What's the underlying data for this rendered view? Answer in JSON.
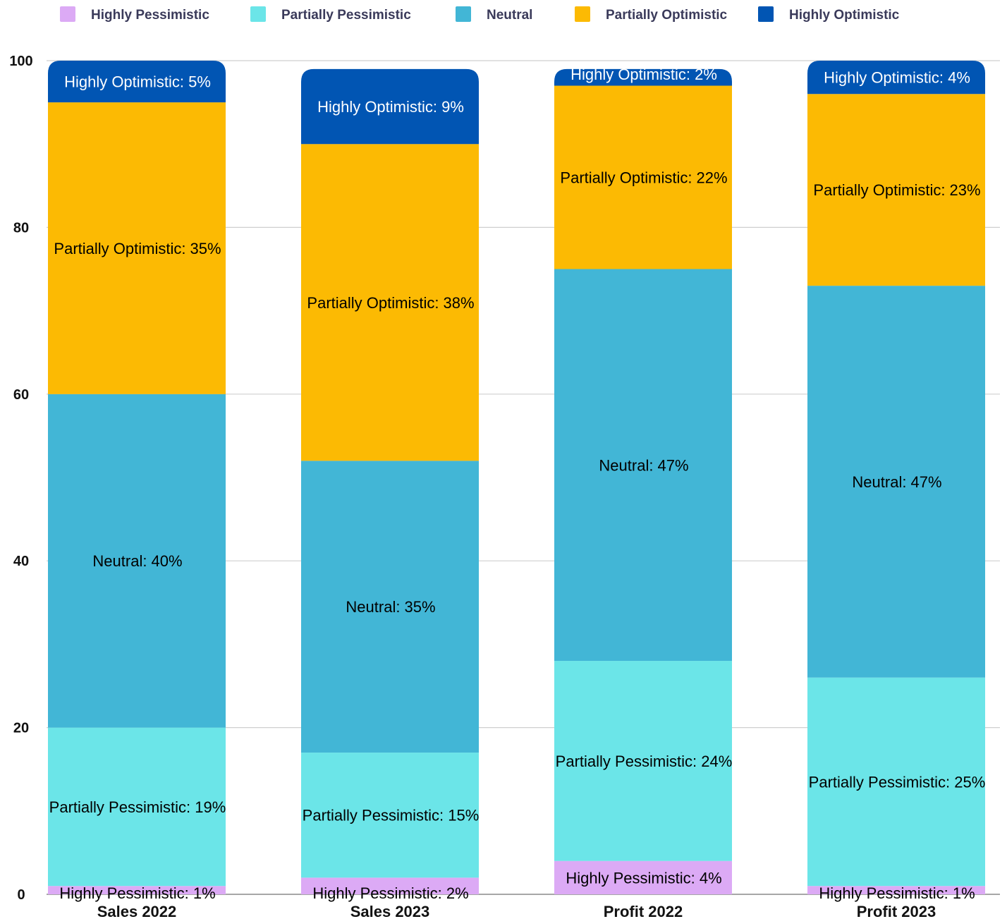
{
  "chart_data": {
    "type": "bar",
    "stacked": true,
    "categories": [
      "Sales 2022",
      "Sales 2023",
      "Profit 2022",
      "Profit 2023"
    ],
    "series": [
      {
        "name": "Highly Pessimistic",
        "values": [
          1,
          2,
          4,
          1
        ],
        "color": "#dcaaf5",
        "label_color": "#000000"
      },
      {
        "name": "Partially Pessimistic",
        "values": [
          19,
          15,
          24,
          25
        ],
        "color": "#6be5e8",
        "label_color": "#000000"
      },
      {
        "name": "Neutral",
        "values": [
          40,
          35,
          47,
          47
        ],
        "color": "#42b6d6",
        "label_color": "#000000"
      },
      {
        "name": "Partially Optimistic",
        "values": [
          35,
          38,
          22,
          23
        ],
        "color": "#fcba03",
        "label_color": "#000000"
      },
      {
        "name": "Highly Optimistic",
        "values": [
          5,
          9,
          2,
          4
        ],
        "color": "#0155b3",
        "label_color": "#ffffff"
      }
    ],
    "yticks": [
      "0",
      "20",
      "40",
      "60",
      "80",
      "100"
    ],
    "ylim": [
      0,
      100
    ],
    "grid": true,
    "legend_position": "top",
    "label_format": "{name}: {value}%"
  }
}
